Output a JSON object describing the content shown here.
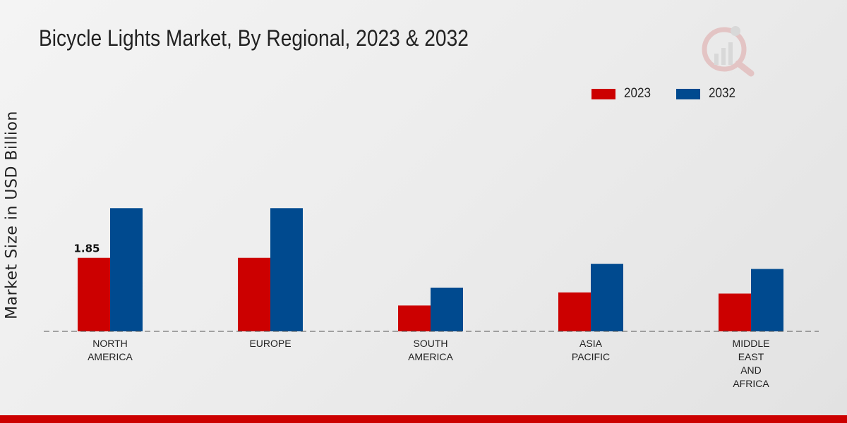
{
  "chart_data": {
    "type": "bar",
    "title": "Bicycle Lights Market, By Regional, 2023 & 2032",
    "xlabel": "",
    "ylabel": "Market Size in USD Billion",
    "ylim": [
      0,
      5.5
    ],
    "categories": [
      [
        "NORTH",
        "AMERICA"
      ],
      [
        "EUROPE"
      ],
      [
        "SOUTH",
        "AMERICA"
      ],
      [
        "ASIA",
        "PACIFIC"
      ],
      [
        "MIDDLE",
        "EAST",
        "AND",
        "AFRICA"
      ]
    ],
    "series": [
      {
        "name": "2023",
        "color": "#cc0000",
        "values": [
          1.85,
          1.85,
          0.65,
          0.98,
          0.95
        ]
      },
      {
        "name": "2032",
        "color": "#004a8f",
        "values": [
          3.1,
          3.1,
          1.1,
          1.7,
          1.57
        ]
      }
    ],
    "data_labels": [
      {
        "series": 0,
        "category": 0,
        "text": "1.85"
      }
    ],
    "legend_position": "top-right",
    "grid": false
  }
}
